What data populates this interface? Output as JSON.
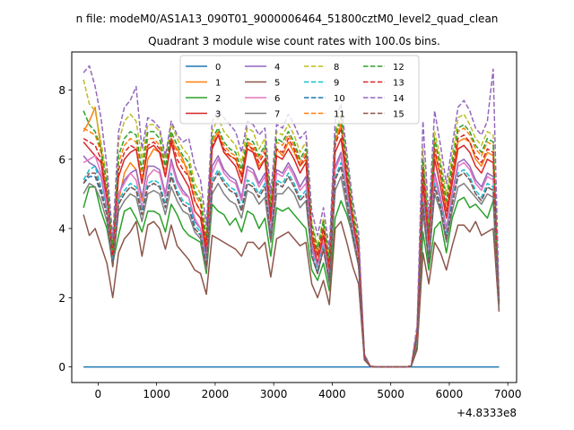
{
  "chart_data": {
    "type": "line",
    "suptitle": "n file: modeM0/AS1A13_090T01_9000006464_51800cztM0_level2_quad_clean",
    "title": "Quadrant 3 module wise count rates with 100.0s bins.",
    "xlabel": "",
    "ylabel": "",
    "offset_label": "+4.8333e8",
    "xlim": [
      -450,
      7150
    ],
    "ylim": [
      -0.45,
      9.1
    ],
    "xticks": [
      0,
      1000,
      2000,
      3000,
      4000,
      5000,
      6000,
      7000
    ],
    "yticks": [
      0,
      2,
      4,
      6,
      8
    ],
    "grid": false,
    "legend": {
      "placement": "upper-center",
      "columns": 4
    },
    "x_start": -250,
    "x_step": 100,
    "gap": {
      "start_index": 48,
      "end_index": 56,
      "value": 0
    },
    "series": [
      {
        "name": "0",
        "color": "#1f77b4",
        "dashed": false,
        "values": [
          0,
          0,
          0,
          0,
          0,
          0,
          0,
          0,
          0,
          0,
          0,
          0,
          0,
          0,
          0,
          0,
          0,
          0,
          0,
          0,
          0,
          0,
          0,
          0,
          0,
          0,
          0,
          0,
          0,
          0,
          0,
          0,
          0,
          0,
          0,
          0,
          0,
          0,
          0,
          0,
          0,
          0,
          0,
          0,
          0,
          0,
          0,
          0,
          0,
          0,
          0,
          0,
          0,
          0,
          0,
          0,
          0,
          0,
          0,
          0,
          0,
          0,
          0,
          0,
          0,
          0,
          0,
          0,
          0,
          0,
          0,
          0
        ]
      },
      {
        "name": "1",
        "color": "#ff7f0e",
        "dashed": false,
        "values": [
          6.8,
          7.1,
          7.5,
          6.3,
          4.8,
          2.9,
          4.8,
          5.6,
          5.9,
          5.7,
          4.8,
          6.0,
          6.3,
          6.2,
          5.5,
          6.5,
          6.3,
          6.0,
          5.5,
          4.8,
          4.5,
          3.5,
          6.5,
          6.8,
          6.2,
          6.1,
          6.0,
          5.5,
          6.5,
          6.2,
          5.8,
          6.0,
          4.3,
          6.3,
          6.1,
          6.5,
          6.2,
          5.8,
          6.0,
          3.8,
          3.2,
          4.0,
          2.9,
          6.5,
          7.0,
          5.5,
          4.3,
          3.4,
          0.3,
          0.02,
          0,
          0,
          0,
          0,
          0,
          0,
          0.02,
          1.0,
          5.5,
          3.6,
          6.2,
          5.5,
          4.5,
          5.5,
          6.5,
          6.6,
          6.5,
          6.0,
          5.8,
          6.2,
          6.1,
          1.9
        ]
      },
      {
        "name": "2",
        "color": "#2ca02c",
        "dashed": false,
        "values": [
          4.6,
          5.2,
          5.2,
          4.5,
          4.0,
          3.0,
          3.8,
          4.5,
          4.6,
          4.3,
          3.9,
          4.5,
          4.5,
          4.4,
          3.9,
          4.7,
          4.4,
          4.0,
          3.8,
          3.7,
          3.6,
          2.7,
          4.7,
          4.5,
          4.4,
          4.1,
          4.3,
          3.9,
          4.5,
          4.4,
          4.0,
          4.3,
          3.2,
          4.6,
          4.5,
          4.6,
          4.4,
          4.2,
          4.0,
          2.8,
          2.5,
          3.0,
          2.2,
          4.3,
          4.8,
          4.4,
          3.8,
          3.2,
          0.25,
          0.02,
          0,
          0,
          0,
          0,
          0,
          0,
          0.02,
          0.6,
          3.9,
          2.8,
          4.0,
          4.2,
          3.3,
          4.3,
          4.8,
          4.9,
          4.6,
          4.7,
          4.5,
          4.3,
          4.8,
          1.7
        ]
      },
      {
        "name": "3",
        "color": "#d62728",
        "dashed": false,
        "values": [
          6.5,
          6.3,
          6.1,
          5.9,
          4.8,
          3.2,
          5.5,
          6.0,
          6.2,
          6.3,
          5.3,
          6.3,
          6.4,
          6.2,
          5.5,
          6.5,
          5.8,
          5.5,
          5.2,
          4.5,
          4.3,
          3.3,
          6.3,
          6.7,
          6.2,
          6.0,
          5.8,
          5.3,
          6.3,
          6.2,
          5.7,
          6.0,
          4.2,
          6.1,
          6.0,
          6.3,
          6.0,
          5.6,
          5.9,
          3.7,
          3.0,
          3.8,
          2.7,
          6.2,
          6.6,
          5.4,
          4.2,
          3.3,
          0.3,
          0.02,
          0,
          0,
          0,
          0,
          0,
          0,
          0.02,
          1.0,
          5.3,
          3.4,
          6.0,
          5.2,
          4.3,
          5.3,
          6.3,
          6.4,
          6.2,
          5.8,
          5.6,
          6.0,
          5.9,
          1.8
        ]
      },
      {
        "name": "4",
        "color": "#9467bd",
        "dashed": false,
        "values": [
          6.1,
          5.9,
          5.8,
          5.5,
          4.6,
          3.1,
          5.0,
          5.4,
          5.6,
          5.7,
          4.9,
          5.8,
          5.8,
          5.7,
          5.0,
          6.0,
          5.4,
          5.1,
          4.9,
          4.2,
          4.0,
          3.1,
          5.8,
          6.1,
          5.7,
          5.5,
          5.4,
          4.9,
          5.8,
          5.7,
          5.3,
          5.6,
          3.9,
          5.7,
          5.6,
          5.9,
          5.6,
          5.2,
          5.5,
          3.5,
          2.9,
          3.6,
          2.6,
          5.8,
          6.2,
          5.1,
          4.0,
          3.1,
          0.28,
          0.02,
          0,
          0,
          0,
          0,
          0,
          0,
          0.02,
          0.9,
          5.0,
          3.2,
          5.6,
          4.9,
          4.0,
          5.0,
          5.9,
          6.0,
          5.8,
          5.4,
          5.2,
          5.6,
          5.5,
          1.8
        ]
      },
      {
        "name": "5",
        "color": "#8c564b",
        "dashed": false,
        "values": [
          4.4,
          3.8,
          4.0,
          3.5,
          3.0,
          2.0,
          3.3,
          3.7,
          3.9,
          4.2,
          3.2,
          4.1,
          4.2,
          4.0,
          3.4,
          4.1,
          3.5,
          3.3,
          3.1,
          2.8,
          2.7,
          2.1,
          3.8,
          3.7,
          3.6,
          3.5,
          3.4,
          3.2,
          3.6,
          3.6,
          3.4,
          3.6,
          2.6,
          3.7,
          3.8,
          3.9,
          3.7,
          3.5,
          3.6,
          2.4,
          2.0,
          2.5,
          1.8,
          4.0,
          4.2,
          3.6,
          2.9,
          2.4,
          0.2,
          0.02,
          0,
          0,
          0,
          0,
          0,
          0,
          0.02,
          0.5,
          3.3,
          2.4,
          3.6,
          3.3,
          2.8,
          3.5,
          4.1,
          4.1,
          3.9,
          4.2,
          3.8,
          3.9,
          4.0,
          1.6
        ]
      },
      {
        "name": "6",
        "color": "#e377c2",
        "dashed": false,
        "values": [
          5.9,
          6.0,
          6.1,
          5.6,
          4.7,
          3.0,
          5.0,
          5.3,
          5.6,
          5.4,
          4.6,
          5.5,
          5.7,
          5.6,
          4.9,
          5.9,
          5.3,
          5.0,
          4.9,
          4.3,
          4.0,
          3.0,
          5.6,
          6.0,
          5.6,
          5.4,
          5.3,
          4.8,
          5.7,
          5.6,
          5.2,
          5.5,
          3.9,
          5.6,
          5.5,
          5.8,
          5.5,
          5.1,
          5.3,
          3.4,
          2.9,
          3.6,
          2.6,
          5.7,
          6.1,
          5.0,
          4.0,
          3.1,
          0.28,
          0.02,
          0,
          0,
          0,
          0,
          0,
          0,
          0.02,
          0.9,
          4.9,
          3.2,
          5.5,
          4.8,
          3.9,
          4.9,
          5.8,
          5.9,
          5.7,
          5.3,
          5.1,
          5.5,
          5.4,
          1.8
        ]
      },
      {
        "name": "7",
        "color": "#7f7f7f",
        "dashed": false,
        "values": [
          5.0,
          5.3,
          5.2,
          4.8,
          4.2,
          2.9,
          4.5,
          4.8,
          5.0,
          4.9,
          4.2,
          5.0,
          5.1,
          5.0,
          4.4,
          5.2,
          4.8,
          4.5,
          4.4,
          3.9,
          3.7,
          2.8,
          5.0,
          5.3,
          5.0,
          4.8,
          4.7,
          4.3,
          5.1,
          5.0,
          4.7,
          4.9,
          3.6,
          5.0,
          5.0,
          5.2,
          5.0,
          4.6,
          4.8,
          3.2,
          2.7,
          3.4,
          2.4,
          5.1,
          5.5,
          4.6,
          3.7,
          2.9,
          0.26,
          0.02,
          0,
          0,
          0,
          0,
          0,
          0,
          0.02,
          0.8,
          4.5,
          3.0,
          5.0,
          4.5,
          3.6,
          4.5,
          5.2,
          5.3,
          5.1,
          4.9,
          4.7,
          5.0,
          4.9,
          1.7
        ]
      },
      {
        "name": "8",
        "color": "#bcbd22",
        "dashed": true,
        "values": [
          8.3,
          7.6,
          7.4,
          6.5,
          5.5,
          3.5,
          6.5,
          7.1,
          7.3,
          7.1,
          6.0,
          7.0,
          7.0,
          6.8,
          6.0,
          7.0,
          6.6,
          6.3,
          6.1,
          5.3,
          5.0,
          3.8,
          6.8,
          7.2,
          6.8,
          6.6,
          6.4,
          5.9,
          6.9,
          6.8,
          6.3,
          6.6,
          4.8,
          6.8,
          6.7,
          7.0,
          6.7,
          6.2,
          6.5,
          4.2,
          3.5,
          4.3,
          3.2,
          6.8,
          7.3,
          6.0,
          4.6,
          3.7,
          0.35,
          0.02,
          0,
          0,
          0,
          0,
          0,
          0,
          0.02,
          1.1,
          6.3,
          4.0,
          6.8,
          6.0,
          5.0,
          6.1,
          7.2,
          7.3,
          7.0,
          6.6,
          6.4,
          6.8,
          6.7,
          1.9
        ]
      },
      {
        "name": "9",
        "color": "#17becf",
        "dashed": true,
        "values": [
          5.4,
          5.7,
          5.8,
          5.2,
          4.5,
          3.0,
          4.8,
          5.1,
          5.3,
          5.2,
          4.5,
          5.3,
          5.4,
          5.3,
          4.7,
          5.6,
          5.1,
          4.8,
          4.7,
          4.1,
          3.9,
          3.0,
          5.4,
          5.7,
          5.4,
          5.2,
          5.1,
          4.6,
          5.4,
          5.3,
          5.0,
          5.3,
          3.8,
          5.4,
          5.3,
          5.6,
          5.3,
          4.9,
          5.1,
          3.3,
          2.8,
          3.5,
          2.5,
          5.5,
          5.9,
          4.9,
          3.9,
          3.0,
          0.27,
          0.02,
          0,
          0,
          0,
          0,
          0,
          0,
          0.02,
          0.9,
          4.8,
          3.1,
          5.3,
          4.7,
          3.8,
          4.8,
          5.6,
          5.7,
          5.5,
          5.1,
          4.9,
          5.3,
          5.2,
          1.8
        ]
      },
      {
        "name": "10",
        "color": "#1f77b4",
        "dashed": true,
        "values": [
          5.3,
          5.5,
          5.5,
          5.0,
          4.4,
          2.9,
          4.7,
          5.0,
          5.2,
          5.1,
          4.4,
          5.2,
          5.3,
          5.2,
          4.6,
          5.5,
          5.0,
          4.7,
          4.6,
          4.0,
          3.8,
          2.9,
          5.3,
          5.6,
          5.3,
          5.1,
          5.0,
          4.5,
          5.3,
          5.2,
          4.9,
          5.2,
          3.7,
          5.3,
          5.2,
          5.5,
          5.2,
          4.8,
          5.0,
          3.2,
          2.7,
          3.4,
          2.5,
          5.4,
          5.8,
          4.8,
          3.8,
          3.0,
          0.27,
          0.02,
          0,
          0,
          0,
          0,
          0,
          0,
          0.02,
          0.9,
          4.7,
          3.0,
          5.2,
          4.6,
          3.7,
          4.7,
          5.5,
          5.6,
          5.4,
          5.0,
          4.8,
          5.2,
          5.1,
          1.8
        ]
      },
      {
        "name": "11",
        "color": "#ff7f0e",
        "dashed": true,
        "values": [
          6.9,
          6.8,
          6.7,
          6.2,
          5.2,
          3.3,
          5.9,
          6.4,
          6.6,
          6.5,
          5.5,
          6.6,
          6.6,
          6.4,
          5.7,
          6.7,
          6.2,
          5.9,
          5.7,
          5.0,
          4.7,
          3.6,
          6.5,
          6.8,
          6.4,
          6.2,
          6.1,
          5.6,
          6.5,
          6.4,
          6.0,
          6.3,
          4.5,
          6.5,
          6.4,
          6.7,
          6.4,
          5.9,
          6.2,
          4.0,
          3.3,
          4.1,
          3.0,
          6.6,
          7.1,
          5.8,
          4.4,
          3.5,
          0.33,
          0.02,
          0,
          0,
          0,
          0,
          0,
          0,
          0.02,
          1.0,
          5.9,
          3.8,
          6.5,
          5.7,
          4.7,
          5.8,
          6.8,
          6.9,
          6.7,
          6.3,
          6.1,
          6.5,
          6.4,
          1.9
        ]
      },
      {
        "name": "12",
        "color": "#2ca02c",
        "dashed": true,
        "values": [
          7.4,
          7.0,
          6.8,
          6.3,
          5.3,
          3.4,
          6.1,
          6.6,
          6.8,
          6.7,
          5.7,
          6.8,
          6.8,
          6.6,
          5.8,
          6.8,
          6.4,
          6.1,
          5.9,
          5.1,
          4.8,
          3.7,
          6.6,
          6.9,
          6.5,
          6.3,
          6.2,
          5.7,
          6.6,
          6.5,
          6.1,
          6.4,
          4.6,
          6.6,
          6.5,
          6.8,
          6.5,
          6.0,
          6.3,
          4.1,
          3.4,
          4.2,
          3.1,
          6.7,
          7.2,
          5.9,
          4.5,
          3.6,
          0.34,
          0.02,
          0,
          0,
          0,
          0,
          0,
          0,
          0.02,
          1.0,
          6.0,
          3.9,
          6.6,
          5.8,
          4.8,
          5.9,
          6.9,
          7.0,
          6.8,
          6.4,
          6.2,
          6.6,
          6.5,
          1.9
        ]
      },
      {
        "name": "13",
        "color": "#d62728",
        "dashed": true,
        "values": [
          6.6,
          6.5,
          6.4,
          6.0,
          5.0,
          3.2,
          5.7,
          6.2,
          6.4,
          6.3,
          5.3,
          6.4,
          6.5,
          6.3,
          5.5,
          6.6,
          6.0,
          5.7,
          5.5,
          4.8,
          4.5,
          3.5,
          6.4,
          6.7,
          6.3,
          6.1,
          6.0,
          5.5,
          6.4,
          6.3,
          5.9,
          6.2,
          4.4,
          6.3,
          6.2,
          6.6,
          6.3,
          5.8,
          6.1,
          3.9,
          3.2,
          4.0,
          2.9,
          6.4,
          6.9,
          5.6,
          4.3,
          3.4,
          0.32,
          0.02,
          0,
          0,
          0,
          0,
          0,
          0,
          0.02,
          1.0,
          5.7,
          3.7,
          6.3,
          5.5,
          4.5,
          5.6,
          6.6,
          6.7,
          6.5,
          6.1,
          5.9,
          6.3,
          6.2,
          1.9
        ]
      },
      {
        "name": "14",
        "color": "#9467bd",
        "dashed": true,
        "values": [
          8.5,
          8.7,
          8.1,
          7.2,
          5.8,
          3.7,
          6.8,
          7.5,
          7.7,
          8.1,
          6.3,
          7.2,
          7.1,
          6.9,
          6.1,
          7.1,
          6.7,
          6.5,
          6.6,
          5.8,
          5.4,
          4.1,
          7.1,
          7.4,
          7.2,
          7.0,
          6.8,
          6.2,
          7.1,
          7.0,
          6.7,
          6.9,
          5.0,
          7.0,
          6.9,
          7.3,
          7.0,
          6.6,
          6.8,
          4.5,
          3.8,
          4.6,
          3.4,
          7.1,
          7.6,
          6.2,
          4.8,
          3.9,
          0.38,
          0.02,
          0,
          0,
          0,
          0,
          0,
          0,
          0.02,
          1.2,
          7.1,
          4.3,
          7.4,
          6.4,
          5.3,
          6.4,
          7.5,
          7.7,
          7.4,
          6.9,
          6.7,
          7.1,
          8.6,
          2.0
        ]
      },
      {
        "name": "15",
        "color": "#8c564b",
        "dashed": true,
        "values": [
          5.3,
          5.6,
          5.6,
          5.1,
          4.4,
          2.9,
          4.7,
          5.0,
          5.2,
          5.1,
          4.4,
          5.2,
          5.3,
          5.2,
          4.6,
          5.5,
          5.0,
          4.7,
          4.6,
          4.0,
          3.8,
          2.9,
          5.3,
          5.6,
          5.3,
          5.1,
          5.0,
          4.5,
          5.3,
          5.2,
          4.9,
          5.2,
          3.7,
          5.3,
          5.2,
          5.5,
          5.2,
          4.8,
          5.0,
          3.2,
          2.7,
          3.4,
          2.5,
          5.4,
          5.8,
          4.8,
          3.8,
          3.0,
          0.27,
          0.02,
          0,
          0,
          0,
          0,
          0,
          0,
          0.02,
          0.9,
          4.7,
          3.0,
          5.2,
          4.6,
          3.7,
          4.7,
          5.5,
          5.6,
          5.4,
          5.0,
          4.8,
          5.2,
          5.1,
          1.8
        ]
      }
    ]
  }
}
